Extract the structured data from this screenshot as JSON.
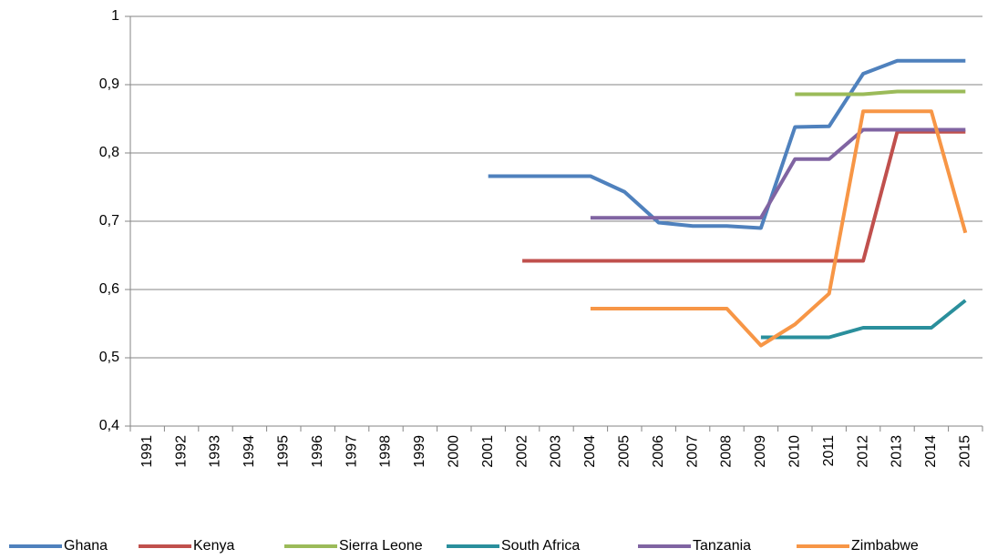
{
  "chart_data": {
    "type": "line",
    "categories": [
      "1991",
      "1992",
      "1993",
      "1994",
      "1995",
      "1996",
      "1997",
      "1998",
      "1999",
      "2000",
      "2001",
      "2002",
      "2003",
      "2004",
      "2005",
      "2006",
      "2007",
      "2008",
      "2009",
      "2010",
      "2011",
      "2012",
      "2013",
      "2014",
      "2015"
    ],
    "series": [
      {
        "name": "Ghana",
        "color": "#4f81bd",
        "values": [
          null,
          null,
          null,
          null,
          null,
          null,
          null,
          null,
          null,
          null,
          0.766,
          0.766,
          0.766,
          0.766,
          0.743,
          0.698,
          0.693,
          0.693,
          0.69,
          0.838,
          0.839,
          0.916,
          0.935,
          0.935,
          0.935
        ]
      },
      {
        "name": "Kenya",
        "color": "#c0504d",
        "values": [
          null,
          null,
          null,
          null,
          null,
          null,
          null,
          null,
          null,
          null,
          null,
          0.642,
          0.642,
          0.642,
          0.642,
          0.642,
          0.642,
          0.642,
          0.642,
          0.642,
          0.642,
          0.642,
          0.831,
          0.831,
          0.831
        ]
      },
      {
        "name": "Sierra Leone",
        "color": "#9bbb59",
        "values": [
          null,
          null,
          null,
          null,
          null,
          null,
          null,
          null,
          null,
          null,
          null,
          null,
          null,
          null,
          null,
          null,
          null,
          null,
          null,
          0.886,
          0.886,
          0.886,
          0.89,
          0.89,
          0.89
        ]
      },
      {
        "name": "South Africa",
        "color": "#2a8f9c",
        "values": [
          null,
          null,
          null,
          null,
          null,
          null,
          null,
          null,
          null,
          null,
          null,
          null,
          null,
          null,
          null,
          null,
          null,
          null,
          0.53,
          0.53,
          0.53,
          0.544,
          0.544,
          0.544,
          0.584
        ]
      },
      {
        "name": "Tanzania",
        "color": "#8064a2",
        "values": [
          null,
          null,
          null,
          null,
          null,
          null,
          null,
          null,
          null,
          null,
          null,
          null,
          null,
          0.705,
          0.705,
          0.705,
          0.705,
          0.705,
          0.705,
          0.791,
          0.791,
          0.834,
          0.834,
          0.834,
          0.834
        ]
      },
      {
        "name": "Zimbabwe",
        "color": "#f79646",
        "values": [
          null,
          null,
          null,
          null,
          null,
          null,
          null,
          null,
          null,
          null,
          null,
          null,
          null,
          0.572,
          0.572,
          0.572,
          0.572,
          0.572,
          0.518,
          0.549,
          0.594,
          0.861,
          0.861,
          0.861,
          0.683
        ]
      }
    ],
    "ylim": [
      0.4,
      1
    ],
    "yticks": [
      {
        "value": 0.4,
        "label": "0,4"
      },
      {
        "value": 0.5,
        "label": "0,5"
      },
      {
        "value": 0.6,
        "label": "0,6"
      },
      {
        "value": 0.7,
        "label": "0,7"
      },
      {
        "value": 0.8,
        "label": "0,8"
      },
      {
        "value": 0.9,
        "label": "0,9"
      },
      1
    ],
    "grid": true,
    "legend": "bottom"
  }
}
